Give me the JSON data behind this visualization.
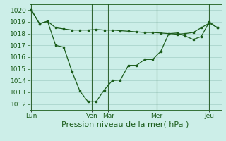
{
  "title": "",
  "xlabel": "Pression niveau de la mer( hPa )",
  "bg_color": "#cceee8",
  "grid_color": "#aad4cc",
  "line_color": "#1a5c1a",
  "vline_color": "#336633",
  "ylim": [
    1011.5,
    1020.5
  ],
  "yticks": [
    1012,
    1013,
    1014,
    1015,
    1016,
    1017,
    1018,
    1019,
    1020
  ],
  "day_labels": [
    "Lun",
    "Ven",
    "Mar",
    "Mer",
    "Jeu"
  ],
  "day_positions": [
    0,
    15,
    19,
    31,
    44
  ],
  "xlim": [
    -0.5,
    47
  ],
  "line1_x": [
    0,
    2,
    4,
    6,
    8,
    10,
    12,
    14,
    16,
    18,
    20,
    22,
    24,
    26,
    28,
    30,
    32,
    34,
    36,
    38,
    40,
    42,
    44,
    46
  ],
  "line1_y": [
    1020.0,
    1018.85,
    1019.05,
    1018.5,
    1018.4,
    1018.3,
    1018.3,
    1018.3,
    1018.35,
    1018.3,
    1018.3,
    1018.25,
    1018.2,
    1018.15,
    1018.1,
    1018.1,
    1018.05,
    1018.0,
    1017.95,
    1018.0,
    1018.1,
    1018.5,
    1018.9,
    1018.5
  ],
  "line2_x": [
    0,
    2,
    4,
    6,
    8,
    10,
    12,
    14,
    16,
    18,
    20,
    22,
    24,
    26,
    28,
    30,
    32,
    34,
    36,
    38,
    40,
    42,
    44,
    46
  ],
  "line2_y": [
    1020.0,
    1018.85,
    1019.05,
    1017.0,
    1016.85,
    1014.8,
    1013.1,
    1012.2,
    1012.2,
    1013.2,
    1014.0,
    1014.05,
    1015.3,
    1015.3,
    1015.8,
    1015.8,
    1016.5,
    1018.0,
    1018.05,
    1017.8,
    1017.5,
    1017.75,
    1019.0,
    1018.5
  ],
  "xlabel_fontsize": 8,
  "tick_fontsize": 6.5,
  "label_color": "#1a5c1a",
  "marker_size": 2.0,
  "linewidth": 0.9
}
